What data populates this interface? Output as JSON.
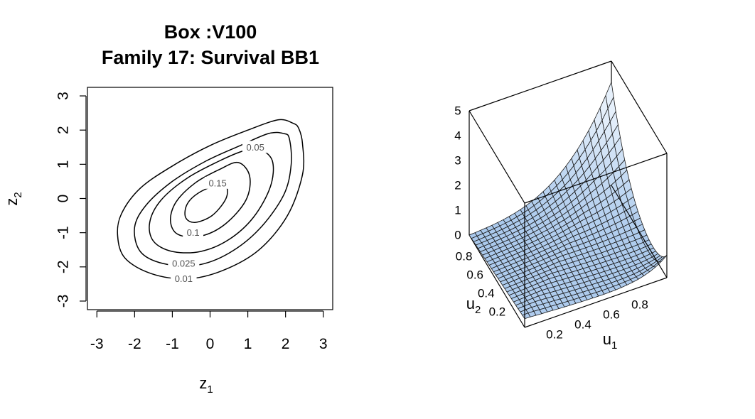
{
  "chart_data": [
    {
      "type": "contour",
      "title": "Box :V100",
      "subtitle": "Family 17: Survival BB1",
      "xlabel": {
        "main": "z",
        "sub": "1"
      },
      "ylabel": {
        "main": "z",
        "sub": "2"
      },
      "xlim": [
        -3.25,
        3.25
      ],
      "ylim": [
        -3.25,
        3.25
      ],
      "xticks": [
        "-3",
        "-2",
        "-1",
        "0",
        "1",
        "2",
        "3"
      ],
      "yticks": [
        "-3",
        "-2",
        "-1",
        "0",
        "1",
        "2",
        "3"
      ],
      "levels": [
        {
          "value": "0.01",
          "label_at": [
            -0.7,
            -2.35
          ],
          "points": [
            [
              2.35,
              2.05
            ],
            [
              2.2,
              2.2
            ],
            [
              1.8,
              2.3
            ],
            [
              1.0,
              2.0
            ],
            [
              0.0,
              1.55
            ],
            [
              -1.0,
              0.95
            ],
            [
              -1.85,
              0.3
            ],
            [
              -2.35,
              -0.45
            ],
            [
              -2.45,
              -1.1
            ],
            [
              -2.25,
              -1.75
            ],
            [
              -1.55,
              -2.2
            ],
            [
              -0.6,
              -2.35
            ],
            [
              0.35,
              -2.1
            ],
            [
              1.3,
              -1.5
            ],
            [
              2.05,
              -0.5
            ],
            [
              2.45,
              0.7
            ],
            [
              2.45,
              1.6
            ]
          ]
        },
        {
          "value": "0.025",
          "label_at": [
            -0.7,
            -1.9
          ],
          "points": [
            [
              2.1,
              1.75
            ],
            [
              1.95,
              1.9
            ],
            [
              1.55,
              1.9
            ],
            [
              0.8,
              1.55
            ],
            [
              -0.1,
              1.1
            ],
            [
              -1.0,
              0.5
            ],
            [
              -1.7,
              -0.2
            ],
            [
              -2.0,
              -0.85
            ],
            [
              -1.85,
              -1.55
            ],
            [
              -1.25,
              -1.9
            ],
            [
              -0.35,
              -1.95
            ],
            [
              0.5,
              -1.6
            ],
            [
              1.3,
              -0.9
            ],
            [
              1.95,
              0.1
            ],
            [
              2.15,
              1.0
            ]
          ]
        },
        {
          "value": "0.05",
          "label_at": [
            1.2,
            1.5
          ],
          "points": [
            [
              1.3,
              1.45
            ],
            [
              0.9,
              1.4
            ],
            [
              0.25,
              1.1
            ],
            [
              -0.6,
              0.6
            ],
            [
              -1.3,
              -0.05
            ],
            [
              -1.6,
              -0.7
            ],
            [
              -1.5,
              -1.25
            ],
            [
              -1.0,
              -1.55
            ],
            [
              -0.25,
              -1.55
            ],
            [
              0.5,
              -1.2
            ],
            [
              1.15,
              -0.55
            ],
            [
              1.6,
              0.35
            ],
            [
              1.65,
              1.1
            ]
          ]
        },
        {
          "value": "0.1",
          "label_at": [
            -0.45,
            -1.0
          ],
          "points": [
            [
              0.75,
              1.05
            ],
            [
              0.25,
              0.85
            ],
            [
              -0.4,
              0.45
            ],
            [
              -0.9,
              -0.1
            ],
            [
              -1.05,
              -0.65
            ],
            [
              -0.85,
              -1.05
            ],
            [
              -0.25,
              -1.1
            ],
            [
              0.4,
              -0.75
            ],
            [
              0.95,
              -0.05
            ],
            [
              1.05,
              0.65
            ]
          ]
        },
        {
          "value": "0.15",
          "label_at": [
            0.2,
            0.45
          ],
          "points": [
            [
              0.25,
              0.4
            ],
            [
              -0.25,
              0.2
            ],
            [
              -0.6,
              -0.15
            ],
            [
              -0.65,
              -0.55
            ],
            [
              -0.4,
              -0.7
            ],
            [
              0.05,
              -0.5
            ],
            [
              0.4,
              -0.05
            ],
            [
              0.45,
              0.3
            ]
          ]
        }
      ]
    },
    {
      "type": "surface",
      "xlabel": {
        "main": "u",
        "sub": "1"
      },
      "ylabel": {
        "main": "u",
        "sub": "2"
      },
      "xticks": [
        "0.2",
        "0.4",
        "0.6",
        "0.8"
      ],
      "yticks": [
        "0.2",
        "0.4",
        "0.6",
        "0.8"
      ],
      "zticks": [
        "0",
        "1",
        "2",
        "3",
        "4",
        "5"
      ],
      "zlim": [
        0,
        5
      ],
      "grid_n": 25,
      "surface_color": "#a9c8ec",
      "surface_top_color": "#e6f0fb",
      "line_color": "#1a1a1a"
    }
  ]
}
